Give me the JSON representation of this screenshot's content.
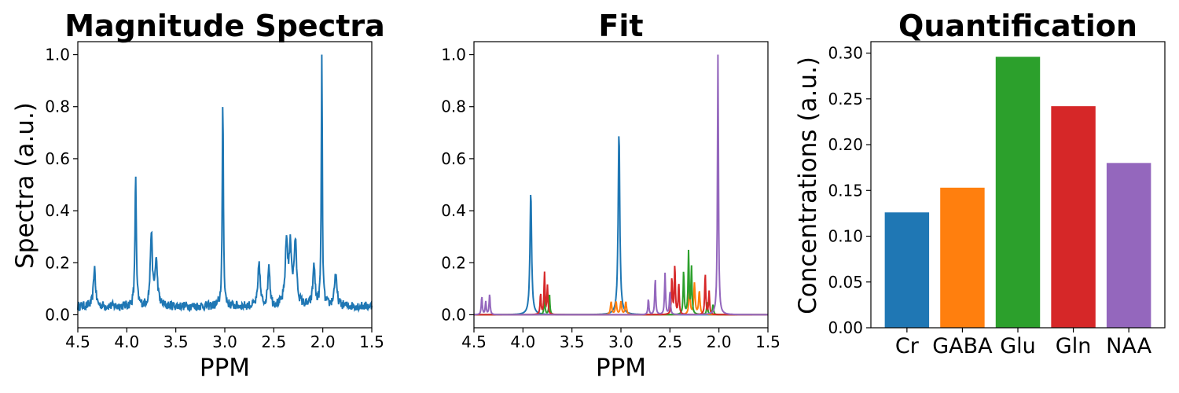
{
  "chart_data": [
    {
      "type": "line",
      "title": "Magnitude Spectra",
      "xlabel": "PPM",
      "ylabel": "Spectra (a.u.)",
      "xlim": [
        4.5,
        1.5
      ],
      "ylim": [
        -0.05,
        1.05
      ],
      "x_ticks": [
        "4.5",
        "4.0",
        "3.5",
        "3.0",
        "2.5",
        "2.0",
        "1.5"
      ],
      "y_ticks": [
        "0.0",
        "0.2",
        "0.4",
        "0.6",
        "0.8",
        "1.0"
      ],
      "baseline_noise": 0.05,
      "series": [
        {
          "color": "#1f77b4",
          "peaks": [
            {
              "ppm": 4.33,
              "height": 0.15,
              "width": 0.012
            },
            {
              "ppm": 3.91,
              "height": 0.5,
              "width": 0.008
            },
            {
              "ppm": 3.75,
              "height": 0.28,
              "width": 0.012
            },
            {
              "ppm": 3.7,
              "height": 0.17,
              "width": 0.015
            },
            {
              "ppm": 3.02,
              "height": 0.78,
              "width": 0.007
            },
            {
              "ppm": 2.65,
              "height": 0.17,
              "width": 0.012
            },
            {
              "ppm": 2.55,
              "height": 0.16,
              "width": 0.012
            },
            {
              "ppm": 2.37,
              "height": 0.24,
              "width": 0.015
            },
            {
              "ppm": 2.33,
              "height": 0.21,
              "width": 0.015
            },
            {
              "ppm": 2.28,
              "height": 0.24,
              "width": 0.015
            },
            {
              "ppm": 2.09,
              "height": 0.16,
              "width": 0.012
            },
            {
              "ppm": 2.01,
              "height": 1.0,
              "width": 0.006
            },
            {
              "ppm": 1.87,
              "height": 0.12,
              "width": 0.015
            }
          ]
        }
      ]
    },
    {
      "type": "line",
      "title": "Fit",
      "xlabel": "PPM",
      "ylabel": "",
      "xlim": [
        4.5,
        1.5
      ],
      "ylim": [
        -0.05,
        1.05
      ],
      "x_ticks": [
        "4.5",
        "4.0",
        "3.5",
        "3.0",
        "2.5",
        "2.0",
        "1.5"
      ],
      "y_ticks": [
        "0.0",
        "0.2",
        "0.4",
        "0.6",
        "0.8",
        "1.0"
      ],
      "series": [
        {
          "color": "#1f77b4",
          "peaks": [
            {
              "ppm": 3.92,
              "height": 0.47,
              "width": 0.01
            },
            {
              "ppm": 3.02,
              "height": 0.7,
              "width": 0.01
            }
          ]
        },
        {
          "color": "#ff7f0e",
          "peaks": [
            {
              "ppm": 3.1,
              "height": 0.05,
              "width": 0.008
            },
            {
              "ppm": 3.05,
              "height": 0.05,
              "width": 0.008
            },
            {
              "ppm": 3.0,
              "height": 0.05,
              "width": 0.008
            },
            {
              "ppm": 2.95,
              "height": 0.05,
              "width": 0.008
            },
            {
              "ppm": 2.3,
              "height": 0.1,
              "width": 0.008
            },
            {
              "ppm": 2.25,
              "height": 0.12,
              "width": 0.008
            },
            {
              "ppm": 2.2,
              "height": 0.09,
              "width": 0.008
            }
          ]
        },
        {
          "color": "#2ca02c",
          "peaks": [
            {
              "ppm": 3.78,
              "height": 0.07,
              "width": 0.006
            },
            {
              "ppm": 3.73,
              "height": 0.08,
              "width": 0.006
            },
            {
              "ppm": 2.36,
              "height": 0.17,
              "width": 0.006
            },
            {
              "ppm": 2.31,
              "height": 0.24,
              "width": 0.006
            },
            {
              "ppm": 2.28,
              "height": 0.18,
              "width": 0.006
            },
            {
              "ppm": 2.12,
              "height": 0.05,
              "width": 0.006
            },
            {
              "ppm": 2.06,
              "height": 0.04,
              "width": 0.006
            }
          ]
        },
        {
          "color": "#d62728",
          "peaks": [
            {
              "ppm": 3.82,
              "height": 0.08,
              "width": 0.006
            },
            {
              "ppm": 3.78,
              "height": 0.16,
              "width": 0.006
            },
            {
              "ppm": 3.75,
              "height": 0.11,
              "width": 0.006
            },
            {
              "ppm": 2.48,
              "height": 0.14,
              "width": 0.006
            },
            {
              "ppm": 2.45,
              "height": 0.19,
              "width": 0.006
            },
            {
              "ppm": 2.41,
              "height": 0.12,
              "width": 0.006
            },
            {
              "ppm": 2.14,
              "height": 0.16,
              "width": 0.006
            },
            {
              "ppm": 2.1,
              "height": 0.09,
              "width": 0.006
            }
          ]
        },
        {
          "color": "#9467bd",
          "peaks": [
            {
              "ppm": 4.42,
              "height": 0.07,
              "width": 0.006
            },
            {
              "ppm": 4.38,
              "height": 0.05,
              "width": 0.006
            },
            {
              "ppm": 4.34,
              "height": 0.08,
              "width": 0.006
            },
            {
              "ppm": 2.72,
              "height": 0.06,
              "width": 0.006
            },
            {
              "ppm": 2.65,
              "height": 0.14,
              "width": 0.006
            },
            {
              "ppm": 2.55,
              "height": 0.16,
              "width": 0.006
            },
            {
              "ppm": 2.5,
              "height": 0.09,
              "width": 0.006
            },
            {
              "ppm": 2.01,
              "height": 1.0,
              "width": 0.006
            }
          ]
        }
      ]
    },
    {
      "type": "bar",
      "title": "Quantification",
      "xlabel": "",
      "ylabel": "Concentrations (a.u.)",
      "ylim": [
        0,
        0.3125
      ],
      "y_ticks": [
        "0.00",
        "0.05",
        "0.10",
        "0.15",
        "0.20",
        "0.25",
        "0.30"
      ],
      "categories": [
        "Cr",
        "GABA",
        "Glu",
        "Gln",
        "NAA"
      ],
      "values": [
        0.126,
        0.153,
        0.296,
        0.242,
        0.18
      ],
      "colors": [
        "#1f77b4",
        "#ff7f0e",
        "#2ca02c",
        "#d62728",
        "#9467bd"
      ]
    }
  ]
}
